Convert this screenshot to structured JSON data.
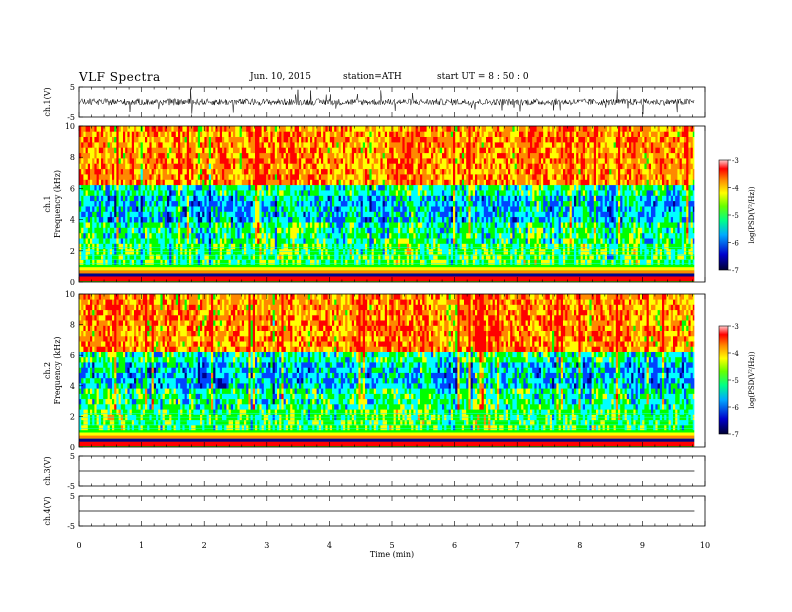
{
  "header": {
    "title": "VLF  Spectra",
    "date": "Jun. 10, 2015",
    "station": "station=ATH",
    "start": "start  UT  =   8  : 50 : 0"
  },
  "colors": {
    "red": "#ff0000",
    "orange": "#ff8800",
    "yellow": "#ffff00",
    "green": "#00ff00",
    "cyan": "#00ffff",
    "blue": "#0044ff",
    "navy": "#000088"
  },
  "chart_data": [
    {
      "type": "line",
      "panel": "ch1-waveform",
      "ylabel": "ch.1(V)",
      "ylim": [
        -5,
        5
      ],
      "yticks": [
        "5",
        "-5"
      ],
      "x": [
        0,
        9.83
      ],
      "note_values": "noisy waveform around 0 V, amplitude about ±1.5 V with spikes"
    },
    {
      "type": "heatmap",
      "panel": "ch1-spectrogram",
      "ylabel": "ch.1\nFrequency  (kHz)",
      "ylim": [
        0,
        10
      ],
      "yticks": [
        "0",
        "2",
        "4",
        "6",
        "8",
        "10"
      ],
      "xlim": [
        0,
        9.83
      ],
      "colorbar": {
        "label": "log(PSD(V²/Hz))",
        "range": [
          -7,
          -3
        ],
        "ticks": [
          "-3",
          "-4",
          "-5",
          "-6",
          "-7"
        ]
      }
    },
    {
      "type": "heatmap",
      "panel": "ch2-spectrogram",
      "ylabel": "ch.2\nFrequency  (kHz)",
      "ylim": [
        0,
        10
      ],
      "yticks": [
        "0",
        "2",
        "4",
        "6",
        "8",
        "10"
      ],
      "xlim": [
        0,
        9.83
      ],
      "colorbar": {
        "label": "log(PSD(V²/Hz))",
        "range": [
          -7,
          -3
        ],
        "ticks": [
          "-3",
          "-4",
          "-5",
          "-6",
          "-7"
        ]
      }
    },
    {
      "type": "line",
      "panel": "ch3-waveform",
      "ylabel": "ch.3(V)",
      "ylim": [
        -5,
        5
      ],
      "yticks": [
        "5",
        "-5"
      ],
      "x": [
        0,
        9.83
      ],
      "y": [
        0,
        0
      ]
    },
    {
      "type": "line",
      "panel": "ch4-waveform",
      "ylabel": "ch.4(V)",
      "ylim": [
        -5,
        5
      ],
      "yticks": [
        "5",
        "-5"
      ],
      "x": [
        0,
        9.83
      ],
      "y": [
        0,
        0
      ]
    }
  ],
  "xaxis": {
    "label": "Time  (min)",
    "ticks": [
      "0",
      "1",
      "2",
      "3",
      "4",
      "5",
      "6",
      "7",
      "8",
      "9",
      "10"
    ],
    "xlim": [
      0,
      10
    ]
  }
}
